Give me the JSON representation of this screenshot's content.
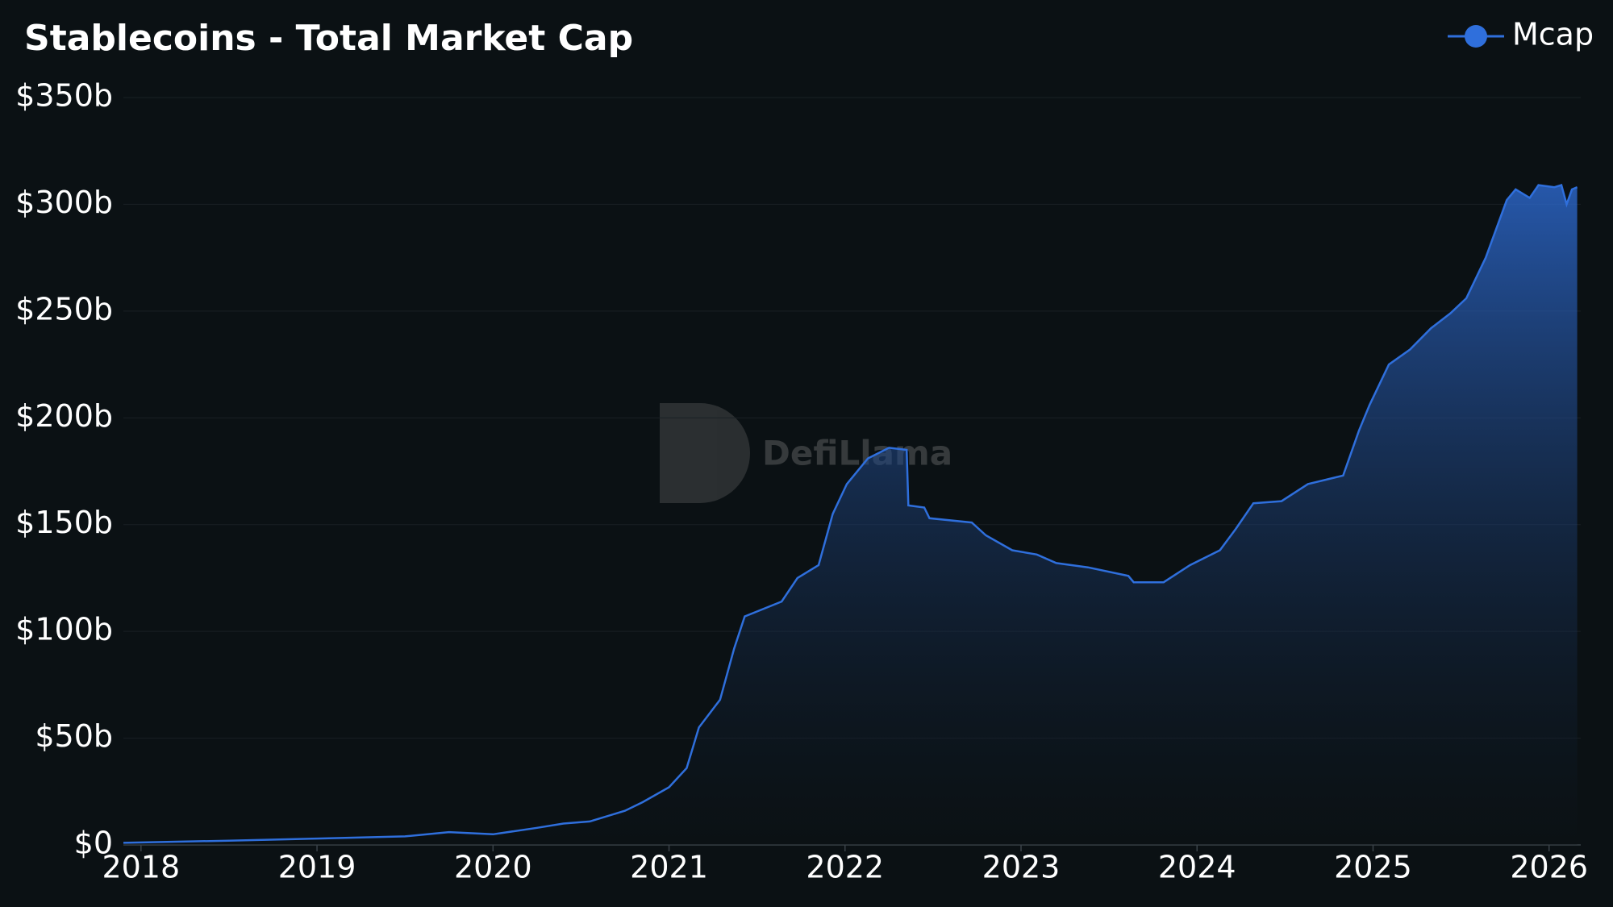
{
  "chart_data": {
    "type": "area",
    "title": "Stablecoins - Total Market Cap",
    "watermark": "DefiLlama",
    "x": [
      2017.9,
      2018.5,
      2019.0,
      2019.5,
      2019.75,
      2020.0,
      2020.25,
      2020.4,
      2020.55,
      2020.75,
      2020.85,
      2021.0,
      2021.1,
      2021.17,
      2021.29,
      2021.37,
      2021.43,
      2021.64,
      2021.73,
      2021.85,
      2021.93,
      2022.01,
      2022.13,
      2022.25,
      2022.35,
      2022.36,
      2022.45,
      2022.48,
      2022.72,
      2022.8,
      2022.95,
      2023.09,
      2023.2,
      2023.38,
      2023.61,
      2023.64,
      2023.81,
      2023.96,
      2024.13,
      2024.22,
      2024.32,
      2024.48,
      2024.63,
      2024.83,
      2024.92,
      2024.98,
      2025.09,
      2025.21,
      2025.33,
      2025.44,
      2025.53,
      2025.64,
      2025.76,
      2025.81,
      2025.89,
      2025.94,
      2026.03,
      2026.07,
      2026.1,
      2026.13,
      2026.16
    ],
    "series": [
      {
        "name": "Mcap",
        "color": "#2f6fdc",
        "values": [
          1,
          2,
          3,
          4,
          6,
          5,
          8,
          10,
          11,
          16,
          20,
          27,
          36,
          55,
          68,
          92,
          107,
          114,
          125,
          131,
          155,
          169,
          181,
          186,
          185,
          159,
          158,
          153,
          151,
          145,
          138,
          136,
          132,
          130,
          126,
          123,
          123,
          131,
          138,
          148,
          160,
          161,
          169,
          173,
          194,
          206,
          225,
          232,
          242,
          249,
          256,
          275,
          302,
          307,
          303,
          309,
          308,
          309,
          300,
          307,
          308
        ]
      }
    ],
    "xlim": [
      2017.9,
      2026.18
    ],
    "xticks": [
      2018,
      2019,
      2020,
      2021,
      2022,
      2023,
      2024,
      2025,
      2026
    ],
    "ylim": [
      0,
      350
    ],
    "yticks": [
      {
        "value": 0,
        "label": "$0"
      },
      {
        "value": 50,
        "label": "$50b"
      },
      {
        "value": 100,
        "label": "$100b"
      },
      {
        "value": 150,
        "label": "$150b"
      },
      {
        "value": 200,
        "label": "$200b"
      },
      {
        "value": 250,
        "label": "$250b"
      },
      {
        "value": 300,
        "label": "$300b"
      },
      {
        "value": 350,
        "label": "$350b"
      }
    ],
    "grid": true,
    "legend": "top-right"
  }
}
